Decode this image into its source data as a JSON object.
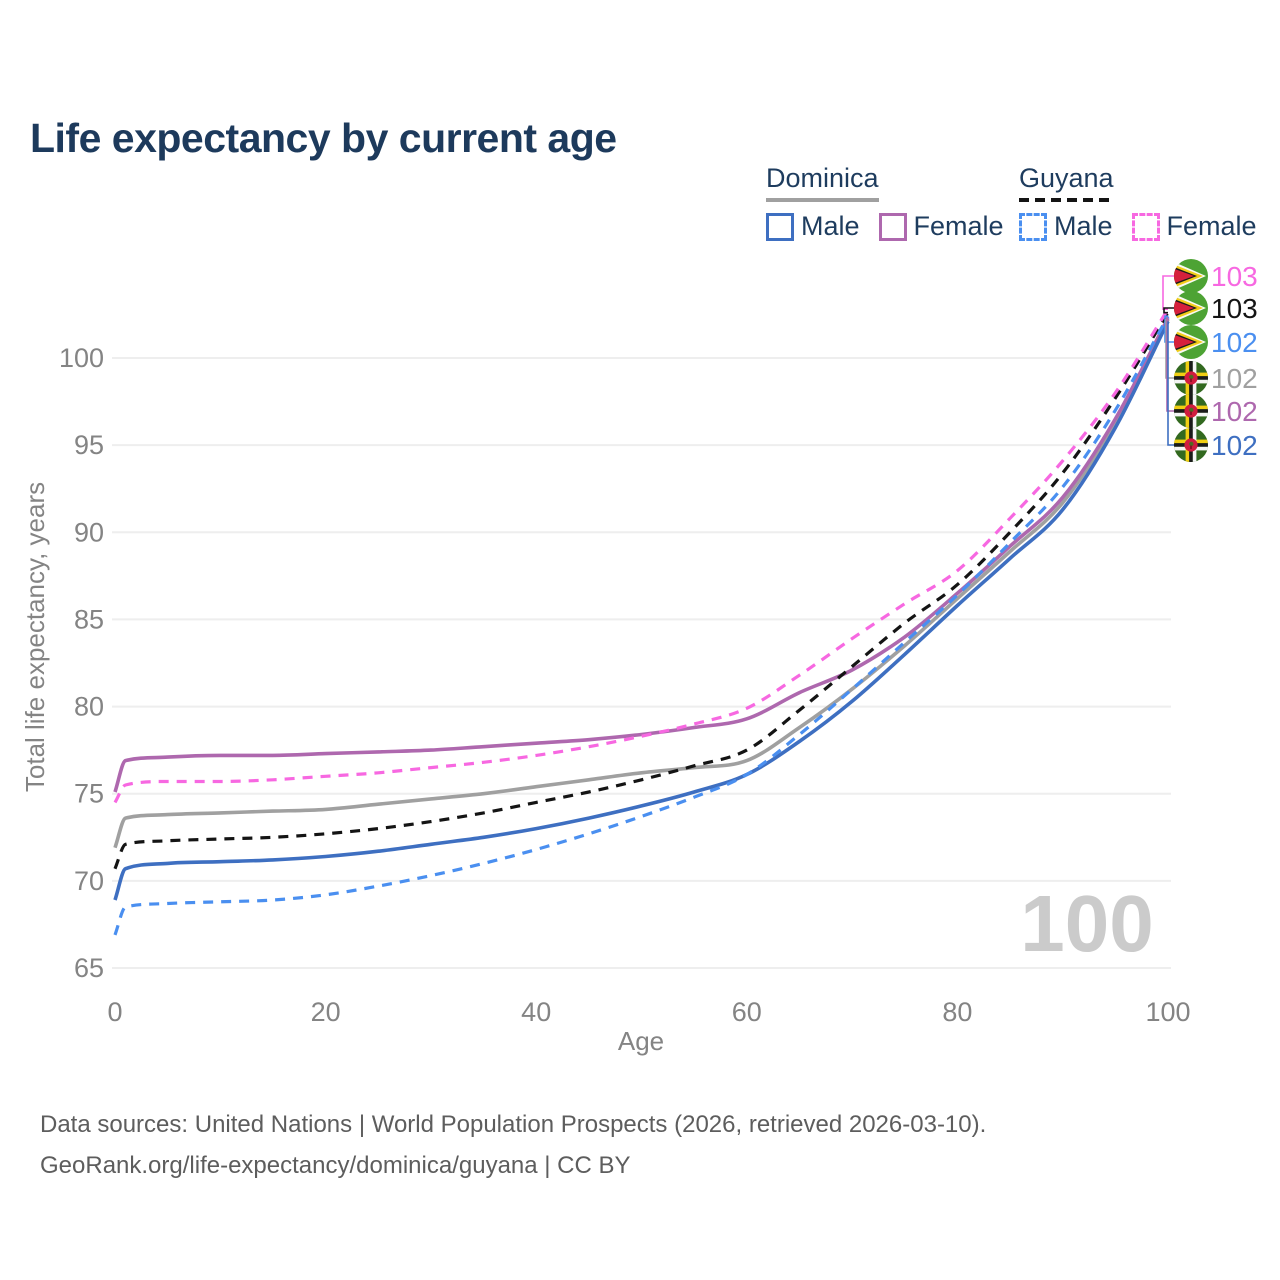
{
  "title": "Life expectancy by current age",
  "legend": {
    "dominica": {
      "label": "Dominica",
      "male": "Male",
      "female": "Female"
    },
    "guyana": {
      "label": "Guyana",
      "male": "Male",
      "female": "Female"
    }
  },
  "watermark": "100",
  "footer": {
    "line1": "Data sources: United Nations | World Population Prospects (2026, retrieved 2026-03-10).",
    "line2": "GeoRank.org/life-expectancy/dominica/guyana | CC BY"
  },
  "colors": {
    "dominica_male": "#3e6fc1",
    "dominica_female": "#ae68ae",
    "dominica_total": "#a0a0a0",
    "guyana_male": "#4a8ff0",
    "guyana_female": "#f768e1",
    "guyana_total": "#141414",
    "title_text": "#1d3a5c",
    "legend_text": "#1e3c5e",
    "axis_text": "#848484",
    "grid_line": "#eeeeee",
    "watermark_text": "#cbcbcb",
    "footer_text": "#5d5d5d"
  },
  "chart_data": {
    "type": "line",
    "title": "Life expectancy by current age",
    "xlabel": "Age",
    "ylabel": "Total life expectancy, years",
    "xlim": [
      0,
      100
    ],
    "ylim": [
      65,
      103
    ],
    "x_ticks": [
      0,
      20,
      40,
      60,
      80,
      100
    ],
    "y_ticks": [
      65,
      70,
      75,
      80,
      85,
      90,
      95,
      100
    ],
    "grid": true,
    "legend_position": "top-right",
    "ages": [
      0,
      1,
      5,
      10,
      15,
      20,
      25,
      30,
      35,
      40,
      45,
      50,
      55,
      60,
      65,
      70,
      75,
      80,
      85,
      90,
      95,
      100
    ],
    "series": [
      {
        "id": "dominica_total",
        "name": "Dominica Total",
        "country": "Dominica",
        "sex": "Total",
        "dash": false,
        "flag": "dominica",
        "end_label": "102",
        "values": [
          71.9,
          73.6,
          73.8,
          73.9,
          74.0,
          74.1,
          74.4,
          74.7,
          75.0,
          75.4,
          75.8,
          76.2,
          76.5,
          76.9,
          78.8,
          81.0,
          83.5,
          86.2,
          88.9,
          91.7,
          96.3,
          102.2
        ]
      },
      {
        "id": "dominica_female",
        "name": "Dominica Female",
        "country": "Dominica",
        "sex": "Female",
        "dash": false,
        "flag": "dominica",
        "end_label": "102",
        "values": [
          75.1,
          76.9,
          77.1,
          77.2,
          77.2,
          77.3,
          77.4,
          77.5,
          77.7,
          77.9,
          78.1,
          78.4,
          78.8,
          79.3,
          80.8,
          82.1,
          84.0,
          86.5,
          89.2,
          92.0,
          96.5,
          102.3
        ]
      },
      {
        "id": "dominica_male",
        "name": "Dominica Male",
        "country": "Dominica",
        "sex": "Male",
        "dash": false,
        "flag": "dominica",
        "end_label": "102",
        "values": [
          68.9,
          70.7,
          71.0,
          71.1,
          71.2,
          71.4,
          71.7,
          72.1,
          72.5,
          73.0,
          73.6,
          74.3,
          75.1,
          76.1,
          78.0,
          80.3,
          83.0,
          85.8,
          88.5,
          91.3,
          96.0,
          102.1
        ]
      },
      {
        "id": "guyana_total",
        "name": "Guyana Total",
        "country": "Guyana",
        "sex": "Total",
        "dash": true,
        "flag": "guyana",
        "end_label": "103",
        "values": [
          70.7,
          72.1,
          72.3,
          72.4,
          72.5,
          72.7,
          73.0,
          73.4,
          73.9,
          74.5,
          75.1,
          75.8,
          76.6,
          77.5,
          79.8,
          82.3,
          84.8,
          87.0,
          90.0,
          93.4,
          97.7,
          102.6
        ]
      },
      {
        "id": "guyana_male",
        "name": "Guyana Male",
        "country": "Guyana",
        "sex": "Male",
        "dash": true,
        "flag": "guyana",
        "end_label": "102",
        "values": [
          66.9,
          68.5,
          68.7,
          68.8,
          68.9,
          69.2,
          69.7,
          70.3,
          71.0,
          71.8,
          72.7,
          73.7,
          74.8,
          76.1,
          78.4,
          81.0,
          83.7,
          86.4,
          89.4,
          92.6,
          97.0,
          102.4
        ]
      },
      {
        "id": "guyana_female",
        "name": "Guyana Female",
        "country": "Guyana",
        "sex": "Female",
        "dash": true,
        "flag": "guyana",
        "end_label": "103",
        "values": [
          74.5,
          75.5,
          75.7,
          75.7,
          75.8,
          76.0,
          76.2,
          76.5,
          76.8,
          77.2,
          77.7,
          78.3,
          79.0,
          79.9,
          81.8,
          83.9,
          85.9,
          87.8,
          90.8,
          94.1,
          98.0,
          102.8
        ]
      }
    ],
    "end_label_rows": [
      "guyana_female",
      "guyana_total",
      "guyana_male",
      "dominica_total",
      "dominica_female",
      "dominica_male"
    ]
  }
}
